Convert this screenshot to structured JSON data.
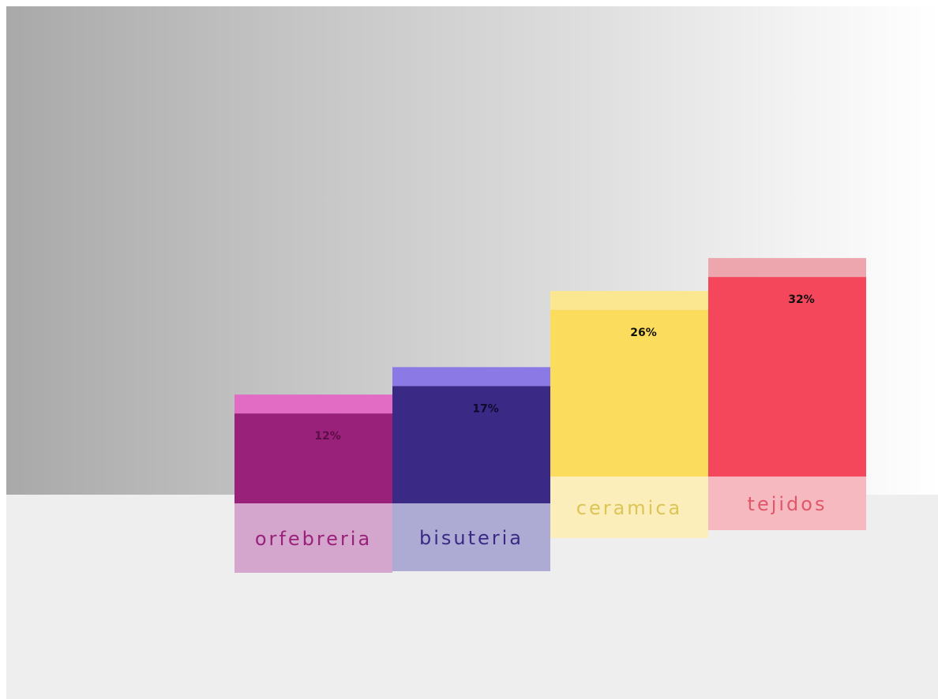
{
  "chart_data": {
    "type": "bar",
    "categories": [
      "orfebreria",
      "bisuteria",
      "ceramica",
      "tejidos"
    ],
    "values": [
      12,
      17,
      26,
      32
    ],
    "value_labels": [
      "12%",
      "17%",
      "26%",
      "32%"
    ],
    "title": "",
    "xlabel": "",
    "ylabel": "",
    "ylim": [
      0,
      32
    ],
    "grid": false,
    "legend": "none",
    "colors": {
      "orfebreria": {
        "bar": "#9a2179",
        "cap": "#e26cc3",
        "label_bg": "#d4a6cd",
        "label_text": "#9a2179",
        "value_text": "#5a0f48"
      },
      "bisuteria": {
        "bar": "#3a2a86",
        "cap": "#8b79e6",
        "label_bg": "#adaad3",
        "label_text": "#3a2a86",
        "value_text": "#0d0a2e"
      },
      "ceramica": {
        "bar": "#fcdc5c",
        "cap": "#fbe790",
        "label_bg": "#fbeeba",
        "label_text": "#dcc455",
        "value_text": "#111111"
      },
      "tejidos": {
        "bar": "#f4475c",
        "cap": "#eda5ae",
        "label_bg": "#f6b9c0",
        "label_text": "#e2566a",
        "value_text": "#111111"
      }
    }
  }
}
